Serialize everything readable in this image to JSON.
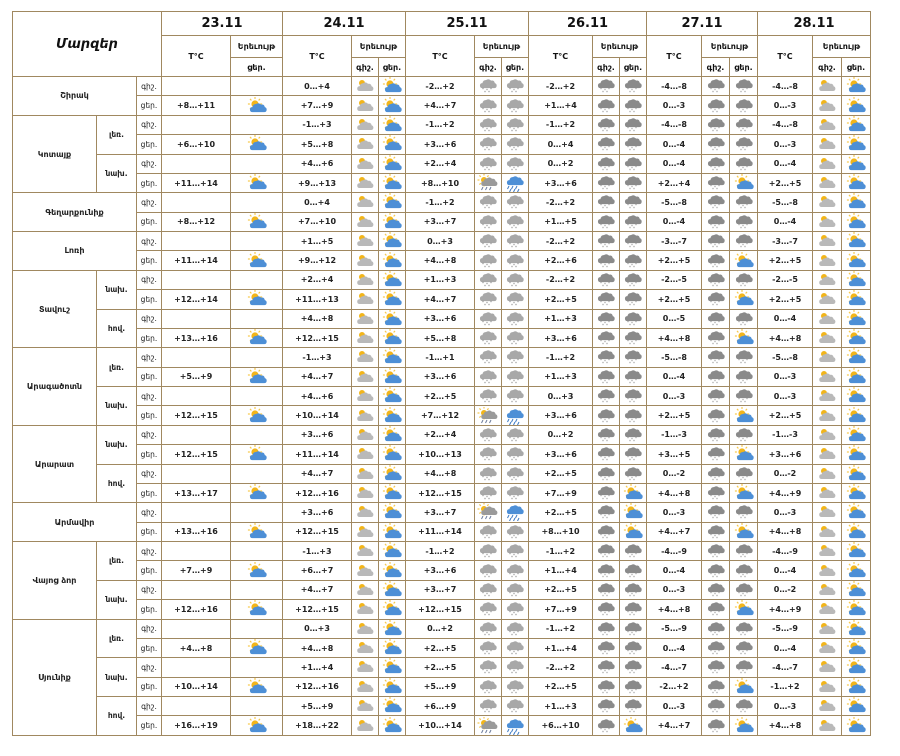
{
  "title": "Մարզեր",
  "days": [
    "23.11",
    "24.11",
    "25.11",
    "26.11",
    "27.11",
    "28.11"
  ],
  "hdr": {
    "temp": "T°C",
    "phen": "Երեւույթ",
    "night": "գիշ.",
    "day": "ցեր."
  },
  "rows": [
    {
      "r": "Շիրակ",
      "rs": 2,
      "s": "",
      "ss": 1,
      "tod": "գիշ.",
      "c": [
        [
          "",
          ""
        ],
        [
          "0…+4",
          "ps",
          "pc"
        ],
        [
          "-2…+2",
          "rs",
          "rs"
        ],
        [
          "-2…+2",
          "cs",
          "cs"
        ],
        [
          "-4…-8",
          "cs",
          "cs"
        ],
        [
          "-4…-8",
          "ps",
          "pc"
        ]
      ]
    },
    {
      "tod": "ցեր.",
      "c": [
        [
          "+8…+11",
          "pc"
        ],
        [
          "+7…+9",
          "ps",
          "pc"
        ],
        [
          "+4…+7",
          "rs",
          "rs"
        ],
        [
          "+1…+4",
          "cs",
          "cs"
        ],
        [
          "0…-3",
          "cs",
          "cs"
        ],
        [
          "0…-3",
          "ps",
          "pc"
        ]
      ]
    },
    {
      "r": "Կոտայք",
      "rs": 4,
      "s": "լեռ.",
      "ss": 2,
      "tod": "գիշ.",
      "c": [
        [
          "",
          ""
        ],
        [
          "-1…+3",
          "ps",
          "pc"
        ],
        [
          "-1…+2",
          "rs",
          "rs"
        ],
        [
          "-1…+2",
          "cs",
          "cs"
        ],
        [
          "-4…-8",
          "cs",
          "cs"
        ],
        [
          "-4…-8",
          "ps",
          "pc"
        ]
      ]
    },
    {
      "tod": "ցեր.",
      "c": [
        [
          "+6…+10",
          "pc"
        ],
        [
          "+5…+8",
          "ps",
          "pc"
        ],
        [
          "+3…+6",
          "rs",
          "rs"
        ],
        [
          "0…+4",
          "cs",
          "cs"
        ],
        [
          "0…-4",
          "cs",
          "cs"
        ],
        [
          "0…-3",
          "ps",
          "pc"
        ]
      ]
    },
    {
      "s": "նախ.",
      "ss": 2,
      "tod": "գիշ.",
      "c": [
        [
          "",
          ""
        ],
        [
          "+4…+6",
          "ps",
          "pc"
        ],
        [
          "+2…+4",
          "rs",
          "rs"
        ],
        [
          "0…+2",
          "cs",
          "cs"
        ],
        [
          "0…-4",
          "cs",
          "cs"
        ],
        [
          "0…-4",
          "ps",
          "pc"
        ]
      ]
    },
    {
      "tod": "ցեր.",
      "c": [
        [
          "+11…+14",
          "pc"
        ],
        [
          "+9…+13",
          "ps",
          "pc"
        ],
        [
          "+8…+10",
          "sr",
          "rn"
        ],
        [
          "+3…+6",
          "cs",
          "cs"
        ],
        [
          "+2…+4",
          "cs",
          "pc"
        ],
        [
          "+2…+5",
          "ps",
          "pc"
        ]
      ]
    },
    {
      "r": "Գեղարքունիք",
      "rs": 2,
      "s": "",
      "ss": 1,
      "tod": "գիշ.",
      "c": [
        [
          "",
          ""
        ],
        [
          "0…+4",
          "ps",
          "pc"
        ],
        [
          "-1…+2",
          "rs",
          "rs"
        ],
        [
          "-2…+2",
          "cs",
          "cs"
        ],
        [
          "-5…-8",
          "cs",
          "cs"
        ],
        [
          "-5…-8",
          "ps",
          "pc"
        ]
      ]
    },
    {
      "tod": "ցեր.",
      "c": [
        [
          "+8…+12",
          "pc"
        ],
        [
          "+7…+10",
          "ps",
          "pc"
        ],
        [
          "+3…+7",
          "rs",
          "rs"
        ],
        [
          "+1…+5",
          "cs",
          "cs"
        ],
        [
          "0…-4",
          "cs",
          "cs"
        ],
        [
          "0…-4",
          "ps",
          "pc"
        ]
      ]
    },
    {
      "r": "Լոռի",
      "rs": 2,
      "s": "",
      "ss": 1,
      "tod": "գիշ.",
      "c": [
        [
          "",
          ""
        ],
        [
          "+1…+5",
          "ps",
          "pc"
        ],
        [
          "0…+3",
          "rs",
          "rs"
        ],
        [
          "-2…+2",
          "cs",
          "cs"
        ],
        [
          "-3…-7",
          "cs",
          "cs"
        ],
        [
          "-3…-7",
          "ps",
          "pc"
        ]
      ]
    },
    {
      "tod": "ցեր.",
      "c": [
        [
          "+11…+14",
          "pc"
        ],
        [
          "+9…+12",
          "ps",
          "pc"
        ],
        [
          "+4…+8",
          "rs",
          "rs"
        ],
        [
          "+2…+6",
          "cs",
          "cs"
        ],
        [
          "+2…+5",
          "cs",
          "pc"
        ],
        [
          "+2…+5",
          "ps",
          "pc"
        ]
      ]
    },
    {
      "r": "Տավուշ",
      "rs": 4,
      "s": "նախ.",
      "ss": 2,
      "tod": "գիշ.",
      "c": [
        [
          "",
          ""
        ],
        [
          "+2…+4",
          "ps",
          "pc"
        ],
        [
          "+1…+3",
          "rs",
          "rs"
        ],
        [
          "-2…+2",
          "cs",
          "cs"
        ],
        [
          "-2…-5",
          "cs",
          "cs"
        ],
        [
          "-2…-5",
          "ps",
          "pc"
        ]
      ]
    },
    {
      "tod": "ցեր.",
      "c": [
        [
          "+12…+14",
          "pc"
        ],
        [
          "+11…+13",
          "ps",
          "pc"
        ],
        [
          "+4…+7",
          "rs",
          "rs"
        ],
        [
          "+2…+5",
          "cs",
          "cs"
        ],
        [
          "+2…+5",
          "cs",
          "pc"
        ],
        [
          "+2…+5",
          "ps",
          "pc"
        ]
      ]
    },
    {
      "s": "հով.",
      "ss": 2,
      "tod": "գիշ.",
      "c": [
        [
          "",
          ""
        ],
        [
          "+4…+8",
          "ps",
          "pc"
        ],
        [
          "+3…+6",
          "rs",
          "rs"
        ],
        [
          "+1…+3",
          "cs",
          "cs"
        ],
        [
          "0…-5",
          "cs",
          "cs"
        ],
        [
          "0…-4",
          "ps",
          "pc"
        ]
      ]
    },
    {
      "tod": "ցեր.",
      "c": [
        [
          "+13…+16",
          "pc"
        ],
        [
          "+12…+15",
          "ps",
          "pc"
        ],
        [
          "+5…+8",
          "rs",
          "rs"
        ],
        [
          "+3…+6",
          "cs",
          "cs"
        ],
        [
          "+4…+8",
          "cs",
          "pc"
        ],
        [
          "+4…+8",
          "ps",
          "pc"
        ]
      ]
    },
    {
      "r": "Արագածոտն",
      "rs": 4,
      "s": "լեռ.",
      "ss": 2,
      "tod": "գիշ.",
      "c": [
        [
          "",
          ""
        ],
        [
          "-1…+3",
          "ps",
          "pc"
        ],
        [
          "-1…+1",
          "rs",
          "rs"
        ],
        [
          "-1…+2",
          "cs",
          "cs"
        ],
        [
          "-5…-8",
          "cs",
          "cs"
        ],
        [
          "-5…-8",
          "ps",
          "pc"
        ]
      ]
    },
    {
      "tod": "ցեր.",
      "c": [
        [
          "+5…+9",
          "pc"
        ],
        [
          "+4…+7",
          "ps",
          "pc"
        ],
        [
          "+3…+6",
          "rs",
          "rs"
        ],
        [
          "+1…+3",
          "cs",
          "cs"
        ],
        [
          "0…-4",
          "cs",
          "cs"
        ],
        [
          "0…-3",
          "ps",
          "pc"
        ]
      ]
    },
    {
      "s": "նախ.",
      "ss": 2,
      "tod": "գիշ.",
      "c": [
        [
          "",
          ""
        ],
        [
          "+4…+6",
          "ps",
          "pc"
        ],
        [
          "+2…+5",
          "rs",
          "rs"
        ],
        [
          "0…+3",
          "cs",
          "cs"
        ],
        [
          "0…-3",
          "cs",
          "cs"
        ],
        [
          "0…-3",
          "ps",
          "pc"
        ]
      ]
    },
    {
      "tod": "ցեր.",
      "c": [
        [
          "+12…+15",
          "pc"
        ],
        [
          "+10…+14",
          "ps",
          "pc"
        ],
        [
          "+7…+12",
          "sr",
          "rn"
        ],
        [
          "+3…+6",
          "cs",
          "cs"
        ],
        [
          "+2…+5",
          "cs",
          "pc"
        ],
        [
          "+2…+5",
          "ps",
          "pc"
        ]
      ]
    },
    {
      "r": "Արարատ",
      "rs": 4,
      "s": "նախ.",
      "ss": 2,
      "tod": "գիշ.",
      "c": [
        [
          "",
          ""
        ],
        [
          "+3…+6",
          "ps",
          "pc"
        ],
        [
          "+2…+4",
          "rs",
          "rs"
        ],
        [
          "0…+2",
          "cs",
          "cs"
        ],
        [
          "-1…-3",
          "cs",
          "cs"
        ],
        [
          "-1…-3",
          "ps",
          "pc"
        ]
      ]
    },
    {
      "tod": "ցեր.",
      "c": [
        [
          "+12…+15",
          "pc"
        ],
        [
          "+11…+14",
          "ps",
          "pc"
        ],
        [
          "+10…+13",
          "rs",
          "rs"
        ],
        [
          "+3…+6",
          "cs",
          "cs"
        ],
        [
          "+3…+5",
          "cs",
          "pc"
        ],
        [
          "+3…+6",
          "ps",
          "pc"
        ]
      ]
    },
    {
      "s": "հով.",
      "ss": 2,
      "tod": "գիշ.",
      "c": [
        [
          "",
          ""
        ],
        [
          "+4…+7",
          "ps",
          "pc"
        ],
        [
          "+4…+8",
          "rs",
          "rs"
        ],
        [
          "+2…+5",
          "cs",
          "cs"
        ],
        [
          "0…-2",
          "cs",
          "cs"
        ],
        [
          "0…-2",
          "ps",
          "pc"
        ]
      ]
    },
    {
      "tod": "ցեր.",
      "c": [
        [
          "+13…+17",
          "pc"
        ],
        [
          "+12…+16",
          "ps",
          "pc"
        ],
        [
          "+12…+15",
          "rs",
          "rs"
        ],
        [
          "+7…+9",
          "cs",
          "pc"
        ],
        [
          "+4…+8",
          "cs",
          "pc"
        ],
        [
          "+4…+9",
          "ps",
          "pc"
        ]
      ]
    },
    {
      "r": "Արմավիր",
      "rs": 2,
      "s": "",
      "ss": 1,
      "tod": "գիշ.",
      "c": [
        [
          "",
          ""
        ],
        [
          "+3…+6",
          "ps",
          "pc"
        ],
        [
          "+3…+7",
          "sr",
          "rn"
        ],
        [
          "+2…+5",
          "cs",
          "pc"
        ],
        [
          "0…-3",
          "cs",
          "cs"
        ],
        [
          "0…-3",
          "ps",
          "pc"
        ]
      ]
    },
    {
      "tod": "ցեր.",
      "c": [
        [
          "+13…+16",
          "pc"
        ],
        [
          "+12…+15",
          "ps",
          "pc"
        ],
        [
          "+11…+14",
          "rs",
          "rs"
        ],
        [
          "+8…+10",
          "cs",
          "pc"
        ],
        [
          "+4…+7",
          "cs",
          "pc"
        ],
        [
          "+4…+8",
          "ps",
          "pc"
        ]
      ]
    },
    {
      "r": "Վայոց ձոր",
      "rs": 4,
      "s": "լեռ.",
      "ss": 2,
      "tod": "գիշ.",
      "c": [
        [
          "",
          ""
        ],
        [
          "-1…+3",
          "ps",
          "pc"
        ],
        [
          "-1…+2",
          "rs",
          "rs"
        ],
        [
          "-1…+2",
          "cs",
          "cs"
        ],
        [
          "-4…-9",
          "cs",
          "cs"
        ],
        [
          "-4…-9",
          "ps",
          "pc"
        ]
      ]
    },
    {
      "tod": "ցեր.",
      "c": [
        [
          "+7…+9",
          "pc"
        ],
        [
          "+6…+7",
          "ps",
          "pc"
        ],
        [
          "+3…+6",
          "rs",
          "rs"
        ],
        [
          "+1…+4",
          "cs",
          "cs"
        ],
        [
          "0…-4",
          "cs",
          "cs"
        ],
        [
          "0…-4",
          "ps",
          "pc"
        ]
      ]
    },
    {
      "s": "նախ.",
      "ss": 2,
      "tod": "գիշ.",
      "c": [
        [
          "",
          ""
        ],
        [
          "+4…+7",
          "ps",
          "pc"
        ],
        [
          "+3…+7",
          "rs",
          "rs"
        ],
        [
          "+2…+5",
          "cs",
          "cs"
        ],
        [
          "0…-3",
          "cs",
          "cs"
        ],
        [
          "0…-2",
          "ps",
          "pc"
        ]
      ]
    },
    {
      "tod": "ցեր.",
      "c": [
        [
          "+12…+16",
          "pc"
        ],
        [
          "+12…+15",
          "ps",
          "pc"
        ],
        [
          "+12…+15",
          "rs",
          "rs"
        ],
        [
          "+7…+9",
          "cs",
          "cs"
        ],
        [
          "+4…+8",
          "cs",
          "pc"
        ],
        [
          "+4…+9",
          "ps",
          "pc"
        ]
      ]
    },
    {
      "r": "Սյունիք",
      "rs": 6,
      "s": "լեռ.",
      "ss": 2,
      "tod": "գիշ.",
      "c": [
        [
          "",
          ""
        ],
        [
          "0…+3",
          "ps",
          "pc"
        ],
        [
          "0…+2",
          "rs",
          "rs"
        ],
        [
          "-1…+2",
          "cs",
          "cs"
        ],
        [
          "-5…-9",
          "cs",
          "cs"
        ],
        [
          "-5…-9",
          "ps",
          "pc"
        ]
      ]
    },
    {
      "tod": "ցեր.",
      "c": [
        [
          "+4…+8",
          "pc"
        ],
        [
          "+4…+8",
          "ps",
          "pc"
        ],
        [
          "+2…+5",
          "rs",
          "rs"
        ],
        [
          "+1…+4",
          "cs",
          "cs"
        ],
        [
          "0…-4",
          "cs",
          "cs"
        ],
        [
          "0…-4",
          "ps",
          "pc"
        ]
      ]
    },
    {
      "s": "նախ.",
      "ss": 2,
      "tod": "գիշ.",
      "c": [
        [
          "",
          ""
        ],
        [
          "+1…+4",
          "ps",
          "pc"
        ],
        [
          "+2…+5",
          "rs",
          "rs"
        ],
        [
          "-2…+2",
          "cs",
          "cs"
        ],
        [
          "-4…-7",
          "cs",
          "cs"
        ],
        [
          "-4…-7",
          "ps",
          "pc"
        ]
      ]
    },
    {
      "tod": "ցեր.",
      "c": [
        [
          "+10…+14",
          "pc"
        ],
        [
          "+12…+16",
          "ps",
          "pc"
        ],
        [
          "+5…+9",
          "rs",
          "rs"
        ],
        [
          "+2…+5",
          "cs",
          "cs"
        ],
        [
          "-2…+2",
          "cs",
          "pc"
        ],
        [
          "-1…+2",
          "ps",
          "pc"
        ]
      ]
    },
    {
      "s": "հով.",
      "ss": 2,
      "tod": "գիշ.",
      "c": [
        [
          "",
          ""
        ],
        [
          "+5…+9",
          "ps",
          "pc"
        ],
        [
          "+6…+9",
          "rs",
          "rs"
        ],
        [
          "+1…+3",
          "cs",
          "cs"
        ],
        [
          "0…-3",
          "cs",
          "cs"
        ],
        [
          "0…-3",
          "ps",
          "pc"
        ]
      ]
    },
    {
      "tod": "ցեր.",
      "c": [
        [
          "+16…+19",
          "pc"
        ],
        [
          "+18…+22",
          "ps",
          "pc"
        ],
        [
          "+10…+14",
          "sr",
          "rn"
        ],
        [
          "+6…+10",
          "cs",
          "pc"
        ],
        [
          "+4…+7",
          "cs",
          "pc"
        ],
        [
          "+4…+8",
          "ps",
          "pc"
        ]
      ]
    }
  ],
  "icons": {
    "pc": "sun-behind-cloud-icon",
    "ps": "partly-cloudy-night-icon",
    "rs": "rain-snow-icon",
    "cs": "snow-cloud-icon",
    "sr": "sun-rain-icon",
    "rn": "rain-icon"
  }
}
